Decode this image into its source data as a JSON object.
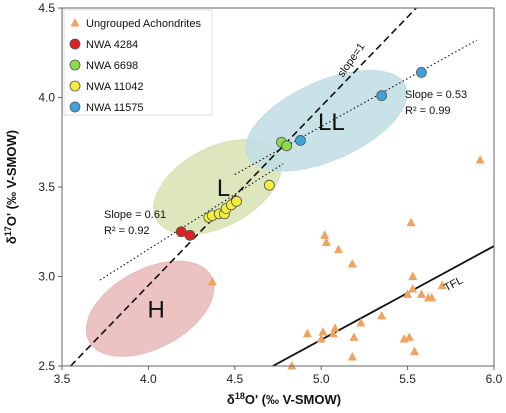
{
  "chart_data": {
    "type": "scatter",
    "xlabel": "δ18O' (‰ V-SMOW)",
    "ylabel": "δ17O' (‰ V-SMOW)",
    "xlim": [
      3.5,
      6.0
    ],
    "ylim": [
      2.5,
      4.5
    ],
    "x_ticks": [
      "3.5",
      "4.0",
      "4.5",
      "5.0",
      "5.5",
      "6.0"
    ],
    "y_ticks": [
      "2.5",
      "3.0",
      "3.5",
      "4.0",
      "4.5"
    ],
    "legend_position": "top-left",
    "grid": false,
    "series": [
      {
        "name": "Ungrouped Achondrites",
        "marker": "triangle",
        "color": "#f0a35e",
        "points": [
          [
            4.37,
            2.97
          ],
          [
            4.83,
            2.5
          ],
          [
            4.92,
            2.68
          ],
          [
            5.0,
            2.65
          ],
          [
            5.01,
            2.69
          ],
          [
            5.02,
            3.23
          ],
          [
            5.03,
            3.19
          ],
          [
            5.07,
            2.68
          ],
          [
            5.08,
            2.71
          ],
          [
            5.1,
            3.15
          ],
          [
            5.18,
            2.55
          ],
          [
            5.18,
            3.07
          ],
          [
            5.19,
            2.66
          ],
          [
            5.23,
            2.74
          ],
          [
            5.35,
            2.78
          ],
          [
            5.48,
            2.65
          ],
          [
            5.51,
            2.66
          ],
          [
            5.5,
            2.9
          ],
          [
            5.52,
            3.3
          ],
          [
            5.53,
            2.93
          ],
          [
            5.53,
            3.0
          ],
          [
            5.54,
            2.58
          ],
          [
            5.58,
            2.9
          ],
          [
            5.62,
            2.88
          ],
          [
            5.64,
            2.88
          ],
          [
            5.7,
            2.95
          ],
          [
            5.92,
            3.65
          ]
        ]
      },
      {
        "name": "NWA 4284",
        "marker": "circle",
        "color": "#e02020",
        "points": [
          [
            4.19,
            3.25
          ],
          [
            4.24,
            3.23
          ]
        ]
      },
      {
        "name": "NWA 6698",
        "marker": "circle",
        "color": "#8fdc4a",
        "points": [
          [
            4.77,
            3.75
          ],
          [
            4.8,
            3.73
          ]
        ]
      },
      {
        "name": "NWA 11042",
        "marker": "circle",
        "color": "#f2ee3a",
        "points": [
          [
            4.35,
            3.33
          ],
          [
            4.37,
            3.34
          ],
          [
            4.41,
            3.35
          ],
          [
            4.44,
            3.35
          ],
          [
            4.45,
            3.38
          ],
          [
            4.48,
            3.4
          ],
          [
            4.51,
            3.42
          ],
          [
            4.7,
            3.51
          ]
        ]
      },
      {
        "name": "NWA 11575",
        "marker": "circle",
        "color": "#3fa2d8",
        "points": [
          [
            4.88,
            3.76
          ],
          [
            5.35,
            4.01
          ],
          [
            5.58,
            4.14
          ]
        ]
      }
    ],
    "lines": [
      {
        "name": "slope=1",
        "style": "dashed",
        "from": [
          3.55,
          2.5
        ],
        "to": [
          5.55,
          4.5
        ]
      },
      {
        "name": "TFL",
        "style": "solid",
        "from": [
          4.72,
          2.5
        ],
        "to": [
          6.0,
          3.17
        ]
      },
      {
        "name": "Slope = 0.61",
        "style": "dotted",
        "from": [
          3.72,
          2.98
        ],
        "to": [
          4.78,
          3.63
        ]
      },
      {
        "name": "Slope = 0.53",
        "style": "dotted",
        "from": [
          4.5,
          3.57
        ],
        "to": [
          5.9,
          4.32
        ]
      }
    ],
    "regions": [
      {
        "label": "H",
        "fill": "#e8b9b9",
        "center": [
          4.01,
          2.82
        ],
        "rx_data": 0.4,
        "ry_data": 0.22,
        "tilt_deg": -28
      },
      {
        "label": "L",
        "fill": "#d7e2b0",
        "center": [
          4.4,
          3.5
        ],
        "rx_data": 0.4,
        "ry_data": 0.22,
        "tilt_deg": -28
      },
      {
        "label": "LL",
        "fill": "#bfdde4",
        "center": [
          5.03,
          3.87
        ],
        "rx_data": 0.5,
        "ry_data": 0.22,
        "tilt_deg": -24
      }
    ],
    "annotations": {
      "slope_left": [
        "Slope = 0.61",
        "R² = 0.92"
      ],
      "slope_right": [
        "Slope = 0.53",
        "R² = 0.99"
      ],
      "slope1": "slope=1",
      "tfl": "TFL"
    }
  }
}
